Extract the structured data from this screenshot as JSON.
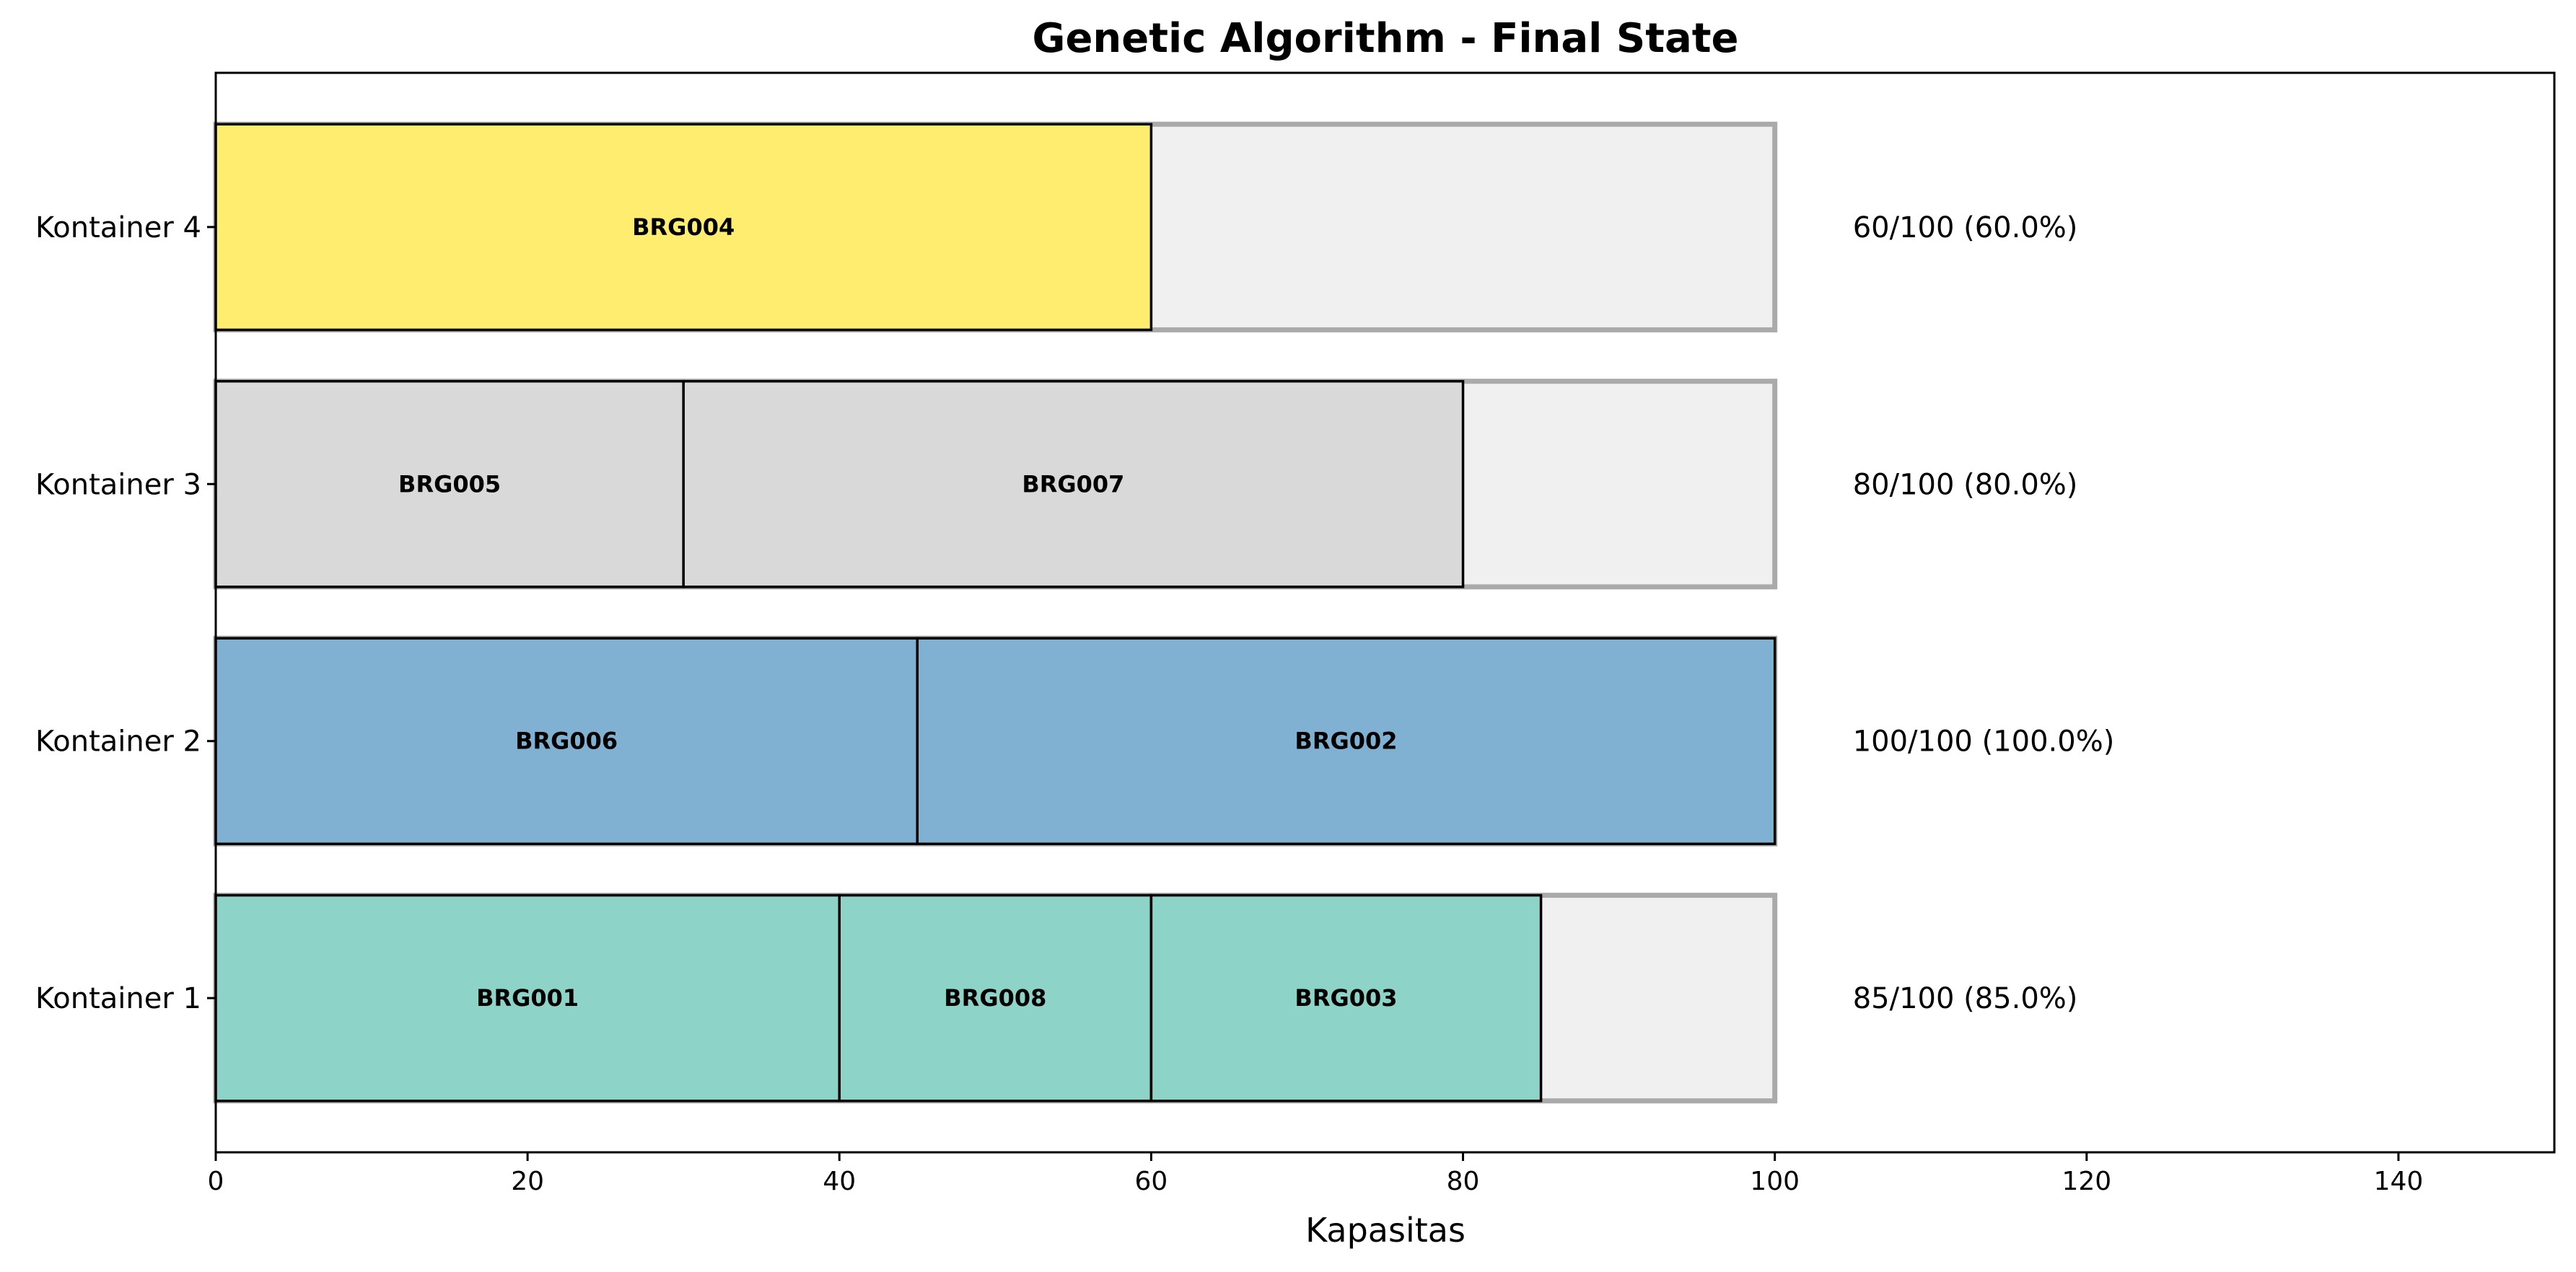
{
  "chart_data": {
    "type": "bar",
    "orientation": "horizontal",
    "stacked": true,
    "title": "Genetic Algorithm - Final State",
    "xlabel": "Kapasitas",
    "ylabel": "",
    "xlim": [
      0,
      150
    ],
    "xticks": [
      "0",
      "20",
      "40",
      "60",
      "80",
      "100",
      "120",
      "140"
    ],
    "capacity": 100,
    "grid": false,
    "legend": "none",
    "empty_color": "#f0f0f0",
    "empty_edge_color": "#aaaaaa",
    "containers": [
      {
        "label": "Kontainer 1",
        "color": "#8dd3c7",
        "items": [
          {
            "id": "BRG001",
            "size": 40
          },
          {
            "id": "BRG008",
            "size": 20
          },
          {
            "id": "BRG003",
            "size": 25
          }
        ],
        "used": 85,
        "usage_text": "85/100 (85.0%)"
      },
      {
        "label": "Kontainer 2",
        "color": "#80b1d3",
        "items": [
          {
            "id": "BRG006",
            "size": 45
          },
          {
            "id": "BRG002",
            "size": 55
          }
        ],
        "used": 100,
        "usage_text": "100/100 (100.0%)"
      },
      {
        "label": "Kontainer 3",
        "color": "#d9d9d9",
        "items": [
          {
            "id": "BRG005",
            "size": 30
          },
          {
            "id": "BRG007",
            "size": 50
          }
        ],
        "used": 80,
        "usage_text": "80/100 (80.0%)"
      },
      {
        "label": "Kontainer 4",
        "color": "#ffed6f",
        "items": [
          {
            "id": "BRG004",
            "size": 60
          }
        ],
        "used": 60,
        "usage_text": "60/100 (60.0%)"
      }
    ]
  }
}
